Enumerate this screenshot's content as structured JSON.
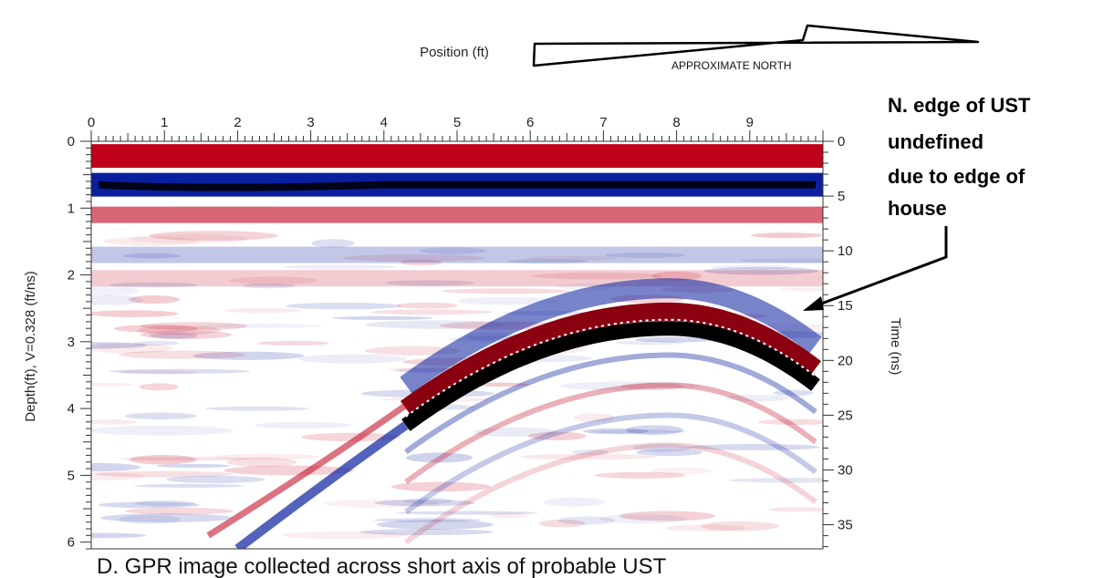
{
  "chart_data": {
    "type": "heatmap",
    "title": "",
    "xlabel": "Position (ft)",
    "ylabel_left": "Depth(ft), V=0.328 (ft/ns)",
    "ylabel_right": "Time (ns)",
    "xlim": [
      0,
      10
    ],
    "ylim_left": [
      0,
      6.1
    ],
    "ylim_right": [
      0,
      37.2
    ],
    "x_ticks": [
      "0",
      "1",
      "2",
      "3",
      "4",
      "5",
      "6",
      "7",
      "8",
      "9"
    ],
    "y_ticks_left": [
      "0",
      "1",
      "2",
      "3",
      "4",
      "5",
      "6"
    ],
    "y_ticks_right": [
      "0",
      "5",
      "10",
      "15",
      "20",
      "25",
      "30",
      "35"
    ],
    "x_tick_values": [
      0,
      1,
      2,
      3,
      4,
      5,
      6,
      7,
      8,
      9
    ],
    "y_tick_values_left": [
      0,
      1,
      2,
      3,
      4,
      5,
      6
    ],
    "y_tick_values_right": [
      0,
      5,
      10,
      15,
      20,
      25,
      30,
      35
    ],
    "colormap": [
      "#0a1f9e",
      "#ffffff",
      "#c0001a"
    ],
    "bands": [
      {
        "depth": 0.22,
        "strength": 1.0
      },
      {
        "depth": 0.65,
        "strength": -1.0
      },
      {
        "depth": 1.1,
        "strength": 0.6
      },
      {
        "depth": 1.7,
        "strength": -0.25
      },
      {
        "depth": 2.05,
        "strength": 0.2
      }
    ],
    "hyperbola": {
      "apex_position": 7.9,
      "apex_depth": 2.75,
      "left_end_position": 4.3,
      "left_end_depth": 4.2,
      "right_end_position": 9.9,
      "right_end_depth": 3.6,
      "tail_end_position": 2.0,
      "tail_end_depth": 6.1
    },
    "annotations": [
      "N. edge of UST",
      "undefined",
      "due to edge of",
      "house"
    ],
    "arrow_target": {
      "position": 9.7,
      "depth": 2.6
    }
  },
  "north_label": "APPROXIMATE NORTH",
  "caption": "D. GPR image collected across short axis of probable UST"
}
